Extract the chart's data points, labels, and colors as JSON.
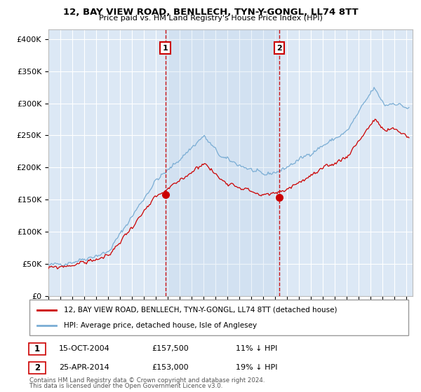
{
  "title": "12, BAY VIEW ROAD, BENLLECH, TYN-Y-GONGL, LL74 8TT",
  "subtitle": "Price paid vs. HM Land Registry's House Price Index (HPI)",
  "ylabel_ticks": [
    "£0",
    "£50K",
    "£100K",
    "£150K",
    "£200K",
    "£250K",
    "£300K",
    "£350K",
    "£400K"
  ],
  "ytick_values": [
    0,
    50000,
    100000,
    150000,
    200000,
    250000,
    300000,
    350000,
    400000
  ],
  "ylim": [
    0,
    415000
  ],
  "xlim_start": 1995.0,
  "xlim_end": 2025.5,
  "purchase1_x": 2004.79,
  "purchase1_y": 157500,
  "purchase2_x": 2014.32,
  "purchase2_y": 153000,
  "plot_bg": "#dce8f5",
  "line_color_property": "#cc0000",
  "line_color_hpi": "#7aadd4",
  "grid_color": "#ffffff",
  "legend_text_property": "12, BAY VIEW ROAD, BENLLECH, TYN-Y-GONGL, LL74 8TT (detached house)",
  "legend_text_hpi": "HPI: Average price, detached house, Isle of Anglesey",
  "annotation1_label": "1",
  "annotation1_date": "15-OCT-2004",
  "annotation1_price": "£157,500",
  "annotation1_pct": "11% ↓ HPI",
  "annotation2_label": "2",
  "annotation2_date": "25-APR-2014",
  "annotation2_price": "£153,000",
  "annotation2_pct": "19% ↓ HPI",
  "footer1": "Contains HM Land Registry data © Crown copyright and database right 2024.",
  "footer2": "This data is licensed under the Open Government Licence v3.0."
}
